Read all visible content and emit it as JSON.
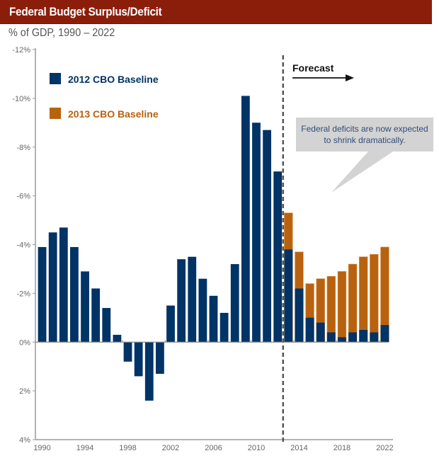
{
  "header": {
    "title": "Federal Budget Surplus/Deficit",
    "subtitle": "% of GDP, 1990 – 2022"
  },
  "colors": {
    "title_bar": "#8b1e0b",
    "series_2012": "#003366",
    "series_2013": "#b8620f",
    "callout": "#d3d3d3",
    "callout_text": "#2f4d7a",
    "axis": "#999999"
  },
  "chart_data": {
    "type": "bar",
    "title": "Federal Budget Surplus/Deficit",
    "subtitle": "% of GDP, 1990 – 2022",
    "xlabel": "",
    "ylabel": "% of GDP",
    "ylim": [
      4,
      -12
    ],
    "y_note": "Negative tick values denote deficits (axis inverted: deficits plotted upward)",
    "y_ticks": [
      -12,
      -10,
      -8,
      -6,
      -4,
      -2,
      0,
      2,
      4
    ],
    "y_tick_labels": [
      "-12%",
      "-10%",
      "-8%",
      "-6%",
      "-4%",
      "-2%",
      "0%",
      "2%",
      "4%"
    ],
    "x_tick_labels": [
      "1990",
      "1994",
      "1998",
      "2002",
      "2006",
      "2010",
      "2014",
      "2018",
      "2022"
    ],
    "grid": false,
    "legend_position": "top-left",
    "categories": [
      1990,
      1991,
      1992,
      1993,
      1994,
      1995,
      1996,
      1997,
      1998,
      1999,
      2000,
      2001,
      2002,
      2003,
      2004,
      2005,
      2006,
      2007,
      2008,
      2009,
      2010,
      2011,
      2012,
      2013,
      2014,
      2015,
      2016,
      2017,
      2018,
      2019,
      2020,
      2021,
      2022
    ],
    "series": [
      {
        "name": "2012 CBO Baseline",
        "values": [
          -3.9,
          -4.5,
          -4.7,
          -3.9,
          -2.9,
          -2.2,
          -1.4,
          -0.3,
          0.8,
          1.4,
          2.4,
          1.3,
          -1.5,
          -3.4,
          -3.5,
          -2.6,
          -1.9,
          -1.2,
          -3.2,
          -10.1,
          -9.0,
          -8.7,
          -7.0,
          -3.8,
          -2.2,
          -1.0,
          -0.8,
          -0.4,
          -0.2,
          -0.4,
          -0.5,
          -0.4,
          -0.7
        ]
      },
      {
        "name": "2013 CBO Baseline",
        "values": [
          null,
          null,
          null,
          null,
          null,
          null,
          null,
          null,
          null,
          null,
          null,
          null,
          null,
          null,
          null,
          null,
          null,
          null,
          null,
          null,
          null,
          null,
          null,
          -5.3,
          -3.7,
          -2.4,
          -2.6,
          -2.7,
          -2.9,
          -3.2,
          -3.5,
          -3.6,
          -3.9
        ]
      }
    ],
    "forecast_start_after": 2012,
    "annotations": [
      {
        "text": "Forecast",
        "type": "arrow-label"
      },
      {
        "text": "Federal deficits are now expected to shrink dramatically.",
        "type": "callout"
      }
    ]
  },
  "legend": [
    {
      "label": "2012 CBO Baseline"
    },
    {
      "label": "2013 CBO Baseline"
    }
  ],
  "annotations": {
    "forecast": "Forecast",
    "callout_line1": "Federal deficits are now expected",
    "callout_line2": "to shrink dramatically."
  }
}
